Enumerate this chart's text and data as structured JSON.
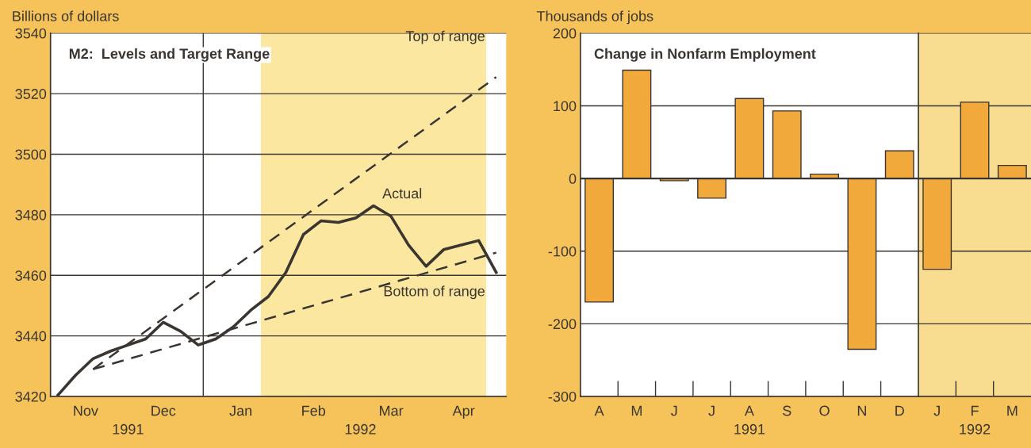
{
  "chart_data": [
    {
      "type": "line",
      "title": "M2:  Levels and Target Range",
      "ylabel": "Billions of dollars",
      "xlim": [
        "1991-11-01",
        "1992-05-01"
      ],
      "ylim": [
        3420,
        3540
      ],
      "yticks": [
        3420,
        3440,
        3460,
        3480,
        3500,
        3520,
        3540
      ],
      "xticks": [
        {
          "value": "1991-11-15",
          "label": "Nov"
        },
        {
          "value": "1991-12-16",
          "label": "Dec"
        },
        {
          "value": "1992-01-16",
          "label": "Jan"
        },
        {
          "value": "1992-02-14",
          "label": "Feb"
        },
        {
          "value": "1992-03-16",
          "label": "Mar"
        },
        {
          "value": "1992-04-14",
          "label": "Apr"
        }
      ],
      "grid": "y",
      "legend": false,
      "series": [
        {
          "name": "Actual",
          "color": "#3a3530",
          "line_style": "solid",
          "x": [
            "1991-11-04",
            "1991-11-11",
            "1991-11-18",
            "1991-11-25",
            "1991-12-02",
            "1991-12-09",
            "1991-12-16",
            "1991-12-23",
            "1991-12-30",
            "1992-01-06",
            "1992-01-13",
            "1992-01-20",
            "1992-01-27",
            "1992-02-03",
            "1992-02-10",
            "1992-02-17",
            "1992-02-24",
            "1992-03-02",
            "1992-03-09",
            "1992-03-16",
            "1992-03-23",
            "1992-03-30",
            "1992-04-06",
            "1992-04-13",
            "1992-04-20",
            "1992-04-27"
          ],
          "values": [
            3420.5,
            3427,
            3432.5,
            3435,
            3437,
            3439,
            3444.5,
            3441.5,
            3437,
            3439,
            3443,
            3448.5,
            3453,
            3461,
            3473.5,
            3478,
            3477.5,
            3479,
            3483,
            3479.5,
            3470,
            3463,
            3468.5,
            3470,
            3471.5,
            3461
          ]
        },
        {
          "name": "Top of range",
          "color": "#3a3530",
          "line_style": "dashed",
          "x": [
            "1991-11-18",
            "1992-04-27"
          ],
          "values": [
            3429,
            3525.5
          ]
        },
        {
          "name": "Bottom of range",
          "color": "#3a3530",
          "line_style": "dashed",
          "x": [
            "1991-11-18",
            "1992-04-27"
          ],
          "values": [
            3429,
            3467.5
          ]
        }
      ],
      "bands": [
        {
          "axis": "x",
          "from": "1992-01-24",
          "to": "1992-04-23",
          "label": null,
          "color": "#fbe7a0"
        }
      ],
      "ref_lines": [
        {
          "axis": "x",
          "value": "1992-01-01",
          "label": null,
          "color": "#3a3530"
        }
      ],
      "annotations": [
        "1991",
        "1992"
      ]
    },
    {
      "type": "bar",
      "title": "Change in Nonfarm Employment",
      "ylabel": "Thousands of jobs",
      "categories": [
        "A",
        "M",
        "J",
        "J",
        "A",
        "S",
        "O",
        "N",
        "D"
      ],
      "ylim": [
        -300,
        200
      ],
      "yticks": [
        -300,
        -200,
        -100,
        0,
        100,
        200
      ],
      "grid": "y",
      "legend": false,
      "color": "#f2a93b",
      "values": [
        -170,
        149,
        -3,
        -27,
        110,
        93,
        6,
        -235,
        38
      ],
      "annotations": [
        "1991"
      ]
    },
    {
      "type": "bar",
      "categories": [
        "J",
        "F",
        "M"
      ],
      "ylim": [
        -300,
        200
      ],
      "yticks": [
        -300,
        -200,
        -100,
        0,
        100,
        200
      ],
      "tick_labels": "x",
      "grid": "y",
      "legend": false,
      "color": "#f2a93b",
      "values": [
        -125,
        105,
        18
      ],
      "annotations": [
        "1992"
      ]
    }
  ]
}
